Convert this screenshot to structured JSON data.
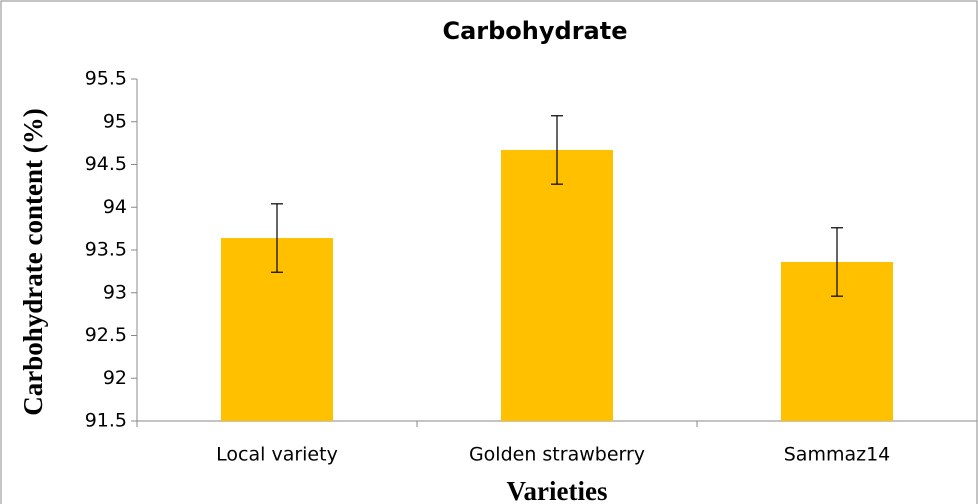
{
  "chart_data": {
    "type": "bar",
    "title": "Carbohydrate",
    "x_label": "Varieties",
    "y_label": "Carbohydrate  content (%)",
    "categories": [
      "Local variety",
      "Golden strawberry",
      "Sammaz14"
    ],
    "values": [
      93.64,
      94.67,
      93.36
    ],
    "errors": [
      0.4,
      0.4,
      0.4
    ],
    "color": "#ffc000",
    "ylim": [
      91.5,
      95.5
    ],
    "yticks": [
      91.5,
      92,
      92.5,
      93,
      93.5,
      94,
      94.5,
      95,
      95.5
    ],
    "grid": false
  }
}
